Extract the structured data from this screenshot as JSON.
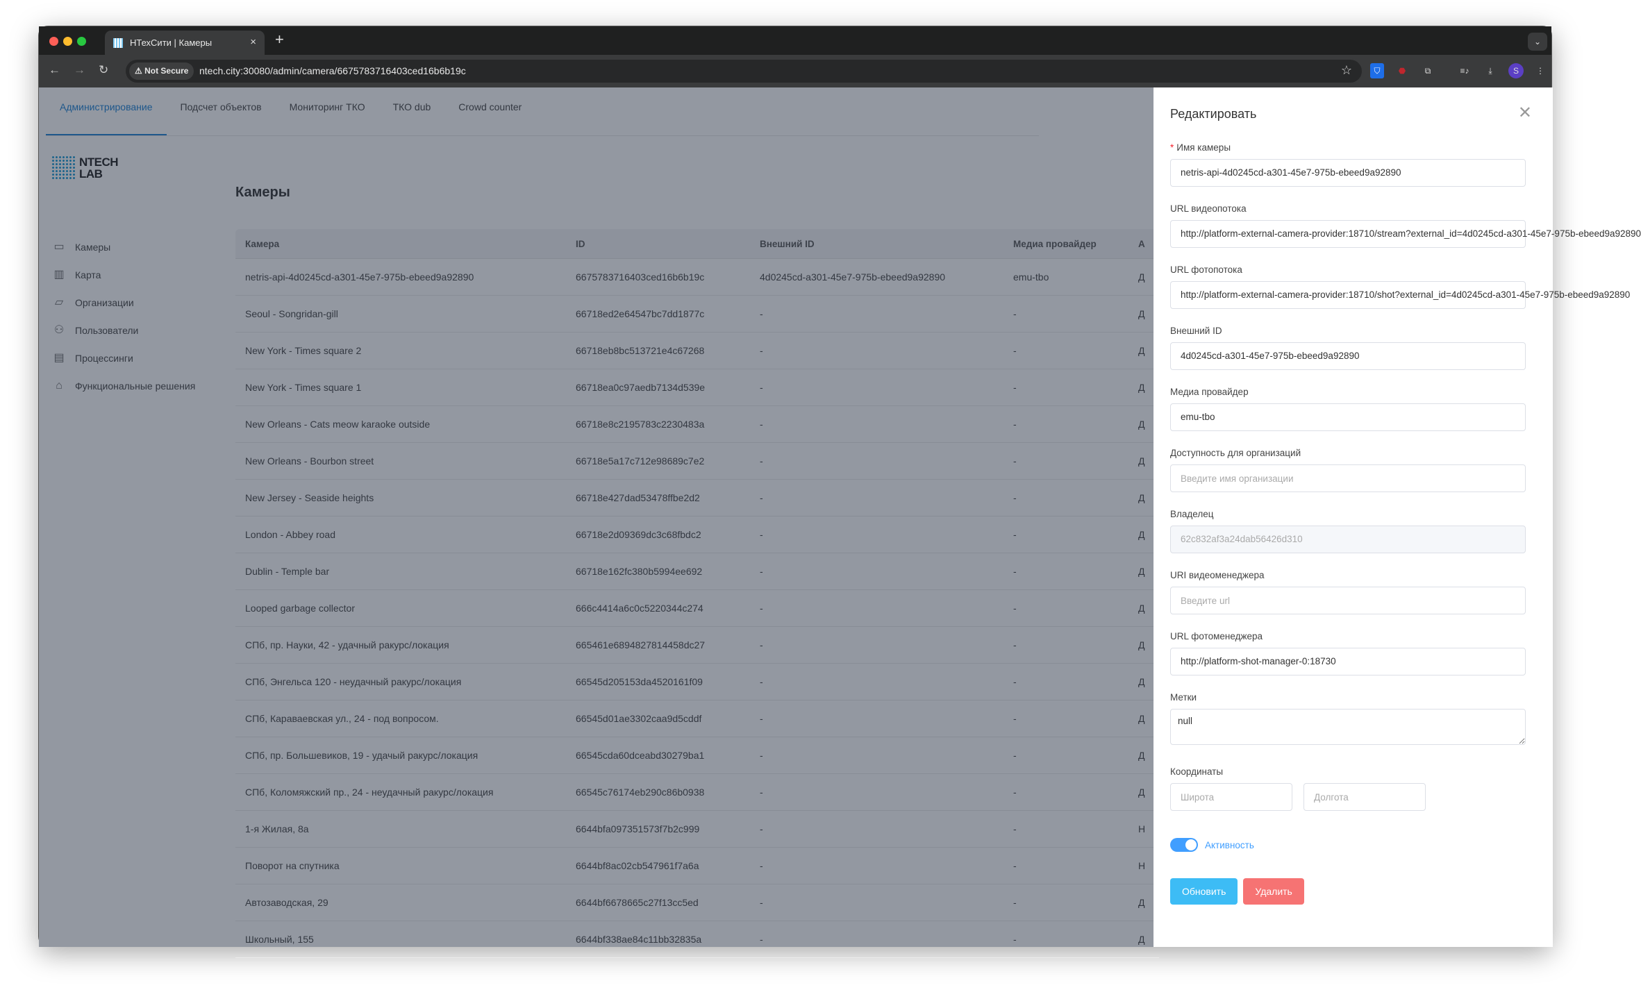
{
  "browser": {
    "tab_title": "НТехСити | Камеры",
    "new_tab": "+",
    "close_tab": "×",
    "not_secure": "Not Secure",
    "url": "ntech.city:30080/admin/camera/6675783716403ced16b6b19c",
    "profile_initial": "S",
    "profile_color": "#5b3fc4"
  },
  "topnav": [
    "Администрирование",
    "Подсчет объектов",
    "Мониторинг ТКО",
    "ТКО dub",
    "Crowd counter"
  ],
  "logo": {
    "line1": "NTECH",
    "line2": "LAB"
  },
  "sidebar": [
    {
      "label": "Камеры",
      "icon": "video-camera-icon"
    },
    {
      "label": "Карта",
      "icon": "map-icon"
    },
    {
      "label": "Организации",
      "icon": "folder-icon"
    },
    {
      "label": "Пользователи",
      "icon": "users-icon"
    },
    {
      "label": "Процессинги",
      "icon": "film-icon"
    },
    {
      "label": "Функциональные решения",
      "icon": "home-icon"
    }
  ],
  "page_title": "Камеры",
  "table": {
    "columns": [
      "Камера",
      "ID",
      "Внешний ID",
      "Медиа провайдер",
      "А"
    ],
    "rows": [
      [
        "netris-api-4d0245cd-a301-45e7-975b-ebeed9a92890",
        "6675783716403ced16b6b19c",
        "4d0245cd-a301-45e7-975b-ebeed9a92890",
        "emu-tbo",
        "Д"
      ],
      [
        "Seoul - Songridan-gill",
        "66718ed2e64547bc7dd1877c",
        "-",
        "-",
        "Д"
      ],
      [
        "New York - Times square 2",
        "66718eb8bc513721e4c67268",
        "-",
        "-",
        "Д"
      ],
      [
        "New York - Times square 1",
        "66718ea0c97aedb7134d539e",
        "-",
        "-",
        "Д"
      ],
      [
        "New Orleans - Cats meow karaoke outside",
        "66718e8c2195783c2230483a",
        "-",
        "-",
        "Д"
      ],
      [
        "New Orleans - Bourbon street",
        "66718e5a17c712e98689c7e2",
        "-",
        "-",
        "Д"
      ],
      [
        "New Jersey - Seaside heights",
        "66718e427dad53478ffbe2d2",
        "-",
        "-",
        "Д"
      ],
      [
        "London - Abbey road",
        "66718e2d09369dc3c68fbdc2",
        "-",
        "-",
        "Д"
      ],
      [
        "Dublin - Temple bar",
        "66718e162fc380b5994ee692",
        "-",
        "-",
        "Д"
      ],
      [
        "Looped garbage collector",
        "666c4414a6c0c5220344c274",
        "-",
        "-",
        "Д"
      ],
      [
        "СПб, пр. Науки, 42 - удачный ракурс/локация",
        "665461e6894827814458dc27",
        "-",
        "-",
        "Д"
      ],
      [
        "СПб, Энгельса 120 - неудачный ракурс/локация",
        "66545d205153da4520161f09",
        "-",
        "-",
        "Д"
      ],
      [
        "СПб, Караваевская ул., 24 - под вопросом.",
        "66545d01ae3302caa9d5cddf",
        "-",
        "-",
        "Д"
      ],
      [
        "СПб, пр. Большевиков, 19 - удачый ракурс/локация",
        "66545cda60dceabd30279ba1",
        "-",
        "-",
        "Д"
      ],
      [
        "СПб, Коломяжский пр., 24 - неудачный ракурс/локация",
        "66545c76174eb290c86b0938",
        "-",
        "-",
        "Д"
      ],
      [
        "1-я Жилая, 8а",
        "6644bfa097351573f7b2c999",
        "-",
        "-",
        "Н"
      ],
      [
        "Поворот на спутника",
        "6644bf8ac02cb547961f7a6a",
        "-",
        "-",
        "Н"
      ],
      [
        "Автозаводская, 29",
        "6644bf6678665c27f13cc5ed",
        "-",
        "-",
        "Д"
      ],
      [
        "Школьный, 155",
        "6644bf338ae84c11bb32835a",
        "-",
        "-",
        "Д"
      ]
    ]
  },
  "drawer": {
    "title": "Редактировать",
    "required_mark": "*",
    "fields": [
      {
        "label": "Имя камеры",
        "value": "netris-api-4d0245cd-a301-45e7-975b-ebeed9a92890",
        "placeholder": "",
        "required": true
      },
      {
        "label": "URL видеопотока",
        "value": "http://platform-external-camera-provider:18710/stream?external_id=4d0245cd-a301-45e7-975b-ebeed9a92890",
        "placeholder": ""
      },
      {
        "label": "URL фотопотока",
        "value": "http://platform-external-camera-provider:18710/shot?external_id=4d0245cd-a301-45e7-975b-ebeed9a92890",
        "placeholder": ""
      },
      {
        "label": "Внешний ID",
        "value": "4d0245cd-a301-45e7-975b-ebeed9a92890",
        "placeholder": ""
      },
      {
        "label": "Медиа провайдер",
        "value": "emu-tbo",
        "placeholder": ""
      },
      {
        "label": "Доступность для организаций",
        "value": "",
        "placeholder": "Введите имя организации"
      },
      {
        "label": "Владелец",
        "value": "62c832af3a24dab56426d310",
        "placeholder": "",
        "disabled": true
      },
      {
        "label": "URI видеоменеджера",
        "value": "",
        "placeholder": "Введите url"
      },
      {
        "label": "URL фотоменеджера",
        "value": "http://platform-shot-manager-0:18730",
        "placeholder": ""
      }
    ],
    "tags_label": "Метки",
    "tags_value": "null",
    "coords_label": "Координаты",
    "lat_placeholder": "Широта",
    "lon_placeholder": "Долгота",
    "active_label": "Активность",
    "active": true,
    "update_label": "Обновить",
    "delete_label": "Удалить",
    "update_color": "#3dbcf5",
    "delete_color": "#f67373"
  }
}
